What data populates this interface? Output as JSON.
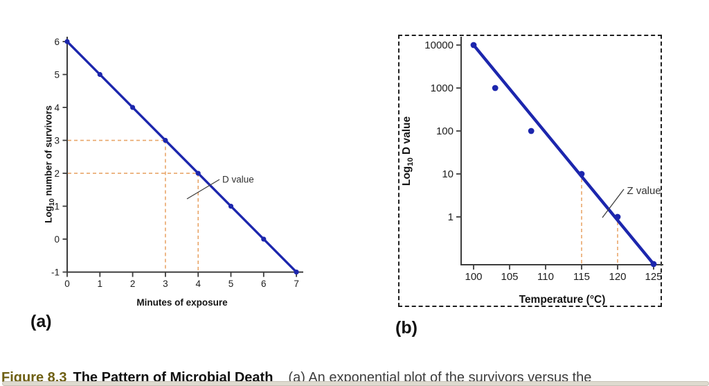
{
  "caption": {
    "figure_label": "Figure 8.3",
    "title": "The Pattern of Microbial Death",
    "body": "(a) An exponential plot of the survivors versus the"
  },
  "colors": {
    "line": "#1c26ad",
    "point": "#1c26ad",
    "guide": "#e9a66a",
    "axis": "#3c3c3c",
    "tick_text": "#1d1d1d",
    "annotation_text": "#333333",
    "figure_label": "#6e5f12"
  },
  "chart_data": [
    {
      "type": "line",
      "panel_label": "(a)",
      "xlabel": "Minutes of exposure",
      "ylabel_text": "Log10 number of survivors",
      "ylabel_parts": {
        "pre": "Log",
        "sub": "10",
        "post": " number of survivors"
      },
      "x": [
        0,
        1,
        2,
        3,
        4,
        5,
        6,
        7
      ],
      "y": [
        6,
        5,
        4,
        3,
        2,
        1,
        0,
        -1
      ],
      "x_ticks": [
        0,
        1,
        2,
        3,
        4,
        5,
        6,
        7
      ],
      "y_ticks": [
        6,
        5,
        4,
        3,
        2,
        1,
        0,
        -1
      ],
      "xlim": [
        0,
        7
      ],
      "ylim": [
        -1,
        6
      ],
      "grid": false,
      "legend": null,
      "annotation": "D value",
      "guides": [
        {
          "x": 3,
          "y": 3
        },
        {
          "x": 4,
          "y": 2
        }
      ]
    },
    {
      "type": "scatter",
      "panel_label": "(b)",
      "xlabel": "Temperature (°C)",
      "ylabel_text": "Log10 D value",
      "ylabel_parts": {
        "pre": "Log",
        "sub": "10",
        "post": " D value"
      },
      "y_scale": "log",
      "points": [
        [
          100,
          10000
        ],
        [
          103,
          1000
        ],
        [
          108,
          100
        ],
        [
          115,
          10
        ],
        [
          120,
          1
        ],
        [
          125,
          0.08
        ]
      ],
      "trend_line": {
        "from": [
          100,
          10000
        ],
        "to": [
          125,
          0.08
        ]
      },
      "x_ticks": [
        100,
        105,
        110,
        115,
        120,
        125
      ],
      "y_ticks": [
        10000,
        1000,
        100,
        10,
        1
      ],
      "xlim": [
        100,
        125
      ],
      "grid": false,
      "legend": null,
      "annotation": "Z value",
      "guides_x": [
        115,
        120
      ]
    }
  ]
}
